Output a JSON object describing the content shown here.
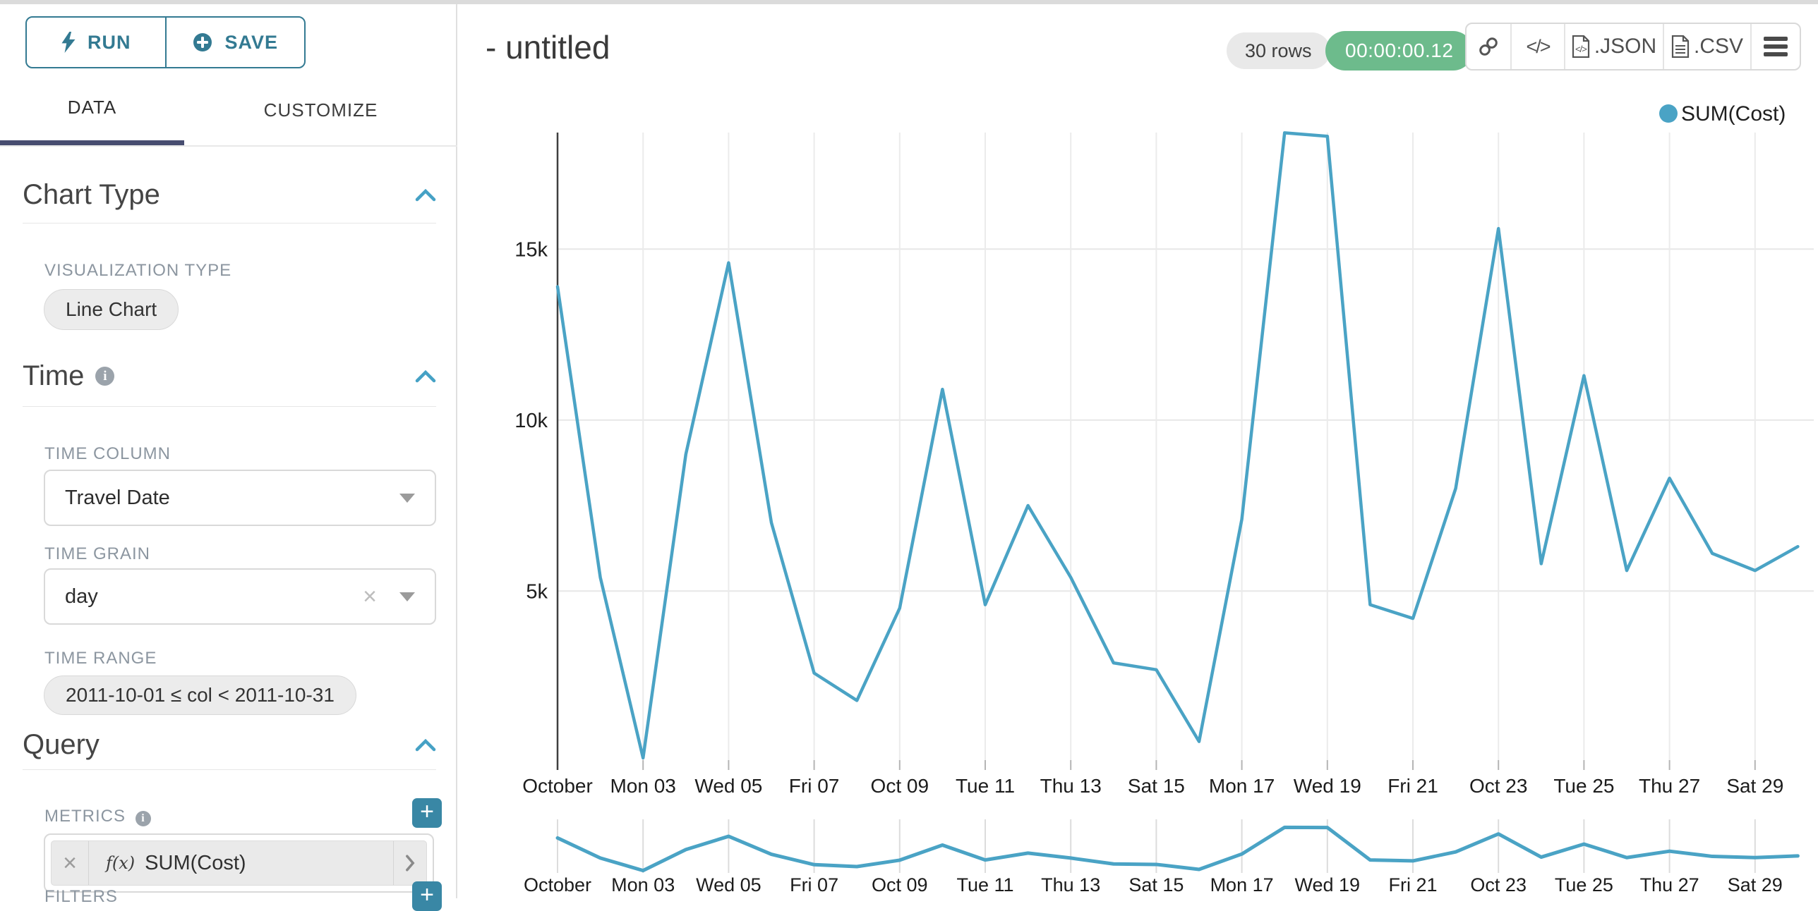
{
  "sidebar": {
    "run_label": "RUN",
    "save_label": "SAVE",
    "tabs": {
      "data": "DATA",
      "customize": "CUSTOMIZE"
    },
    "chart_type": {
      "title": "Chart Type",
      "viz_type_label": "VISUALIZATION TYPE",
      "viz_type_value": "Line Chart"
    },
    "time": {
      "title": "Time",
      "time_column_label": "TIME COLUMN",
      "time_column_value": "Travel Date",
      "time_grain_label": "TIME GRAIN",
      "time_grain_value": "day",
      "time_range_label": "TIME RANGE",
      "time_range_value": "2011-10-01 ≤ col < 2011-10-31"
    },
    "query": {
      "title": "Query",
      "metrics_label": "METRICS",
      "metric_fx": "f(x)",
      "metric_value": "SUM(Cost)",
      "filters_label": "FILTERS"
    }
  },
  "header": {
    "title": "- untitled",
    "rows_badge": "30 rows",
    "timer_badge": "00:00:00.12",
    "export_json_label": ".JSON",
    "export_csv_label": ".CSV"
  },
  "colors": {
    "accent_teal": "#337A92",
    "plus_teal": "#3987A5",
    "line_teal": "#4AA3C5",
    "timer_green": "#6DBB8C",
    "tab_underline_navy": "#474D70",
    "gridline": "#E7E7E7",
    "axis_dark": "#3F3F3F",
    "tick_gray": "#B5B5B5",
    "label_gray": "#8C96A0"
  },
  "chart_data": {
    "type": "line",
    "title": "",
    "xlabel": "",
    "ylabel": "",
    "legend": "SUM(Cost)",
    "legend_position": "top-right",
    "grid": true,
    "x": [
      "Oct 01",
      "Oct 02",
      "Oct 03",
      "Oct 04",
      "Oct 05",
      "Oct 06",
      "Oct 07",
      "Oct 08",
      "Oct 09",
      "Oct 10",
      "Oct 11",
      "Oct 12",
      "Oct 13",
      "Oct 14",
      "Oct 15",
      "Oct 16",
      "Oct 17",
      "Oct 18",
      "Oct 19",
      "Oct 20",
      "Oct 21",
      "Oct 22",
      "Oct 23",
      "Oct 24",
      "Oct 25",
      "Oct 26",
      "Oct 27",
      "Oct 28",
      "Oct 29",
      "Oct 30"
    ],
    "x_tick_labels": [
      "October",
      "Mon 03",
      "Wed 05",
      "Fri 07",
      "Oct 09",
      "Tue 11",
      "Thu 13",
      "Sat 15",
      "Mon 17",
      "Wed 19",
      "Fri 21",
      "Oct 23",
      "Tue 25",
      "Thu 27",
      "Sat 29"
    ],
    "ytick_labels": [
      "5k",
      "10k",
      "15k"
    ],
    "ytick_values": [
      5000,
      10000,
      15000
    ],
    "ylim": [
      0,
      18500
    ],
    "series": [
      {
        "name": "SUM(Cost)",
        "values": [
          13900,
          5400,
          120,
          9000,
          14600,
          7000,
          2600,
          1800,
          4500,
          10900,
          4600,
          7500,
          5400,
          2900,
          2700,
          600,
          7100,
          18400,
          18300,
          4600,
          4200,
          8000,
          15600,
          5800,
          11300,
          5600,
          8300,
          6100,
          5600,
          6300
        ]
      }
    ]
  }
}
